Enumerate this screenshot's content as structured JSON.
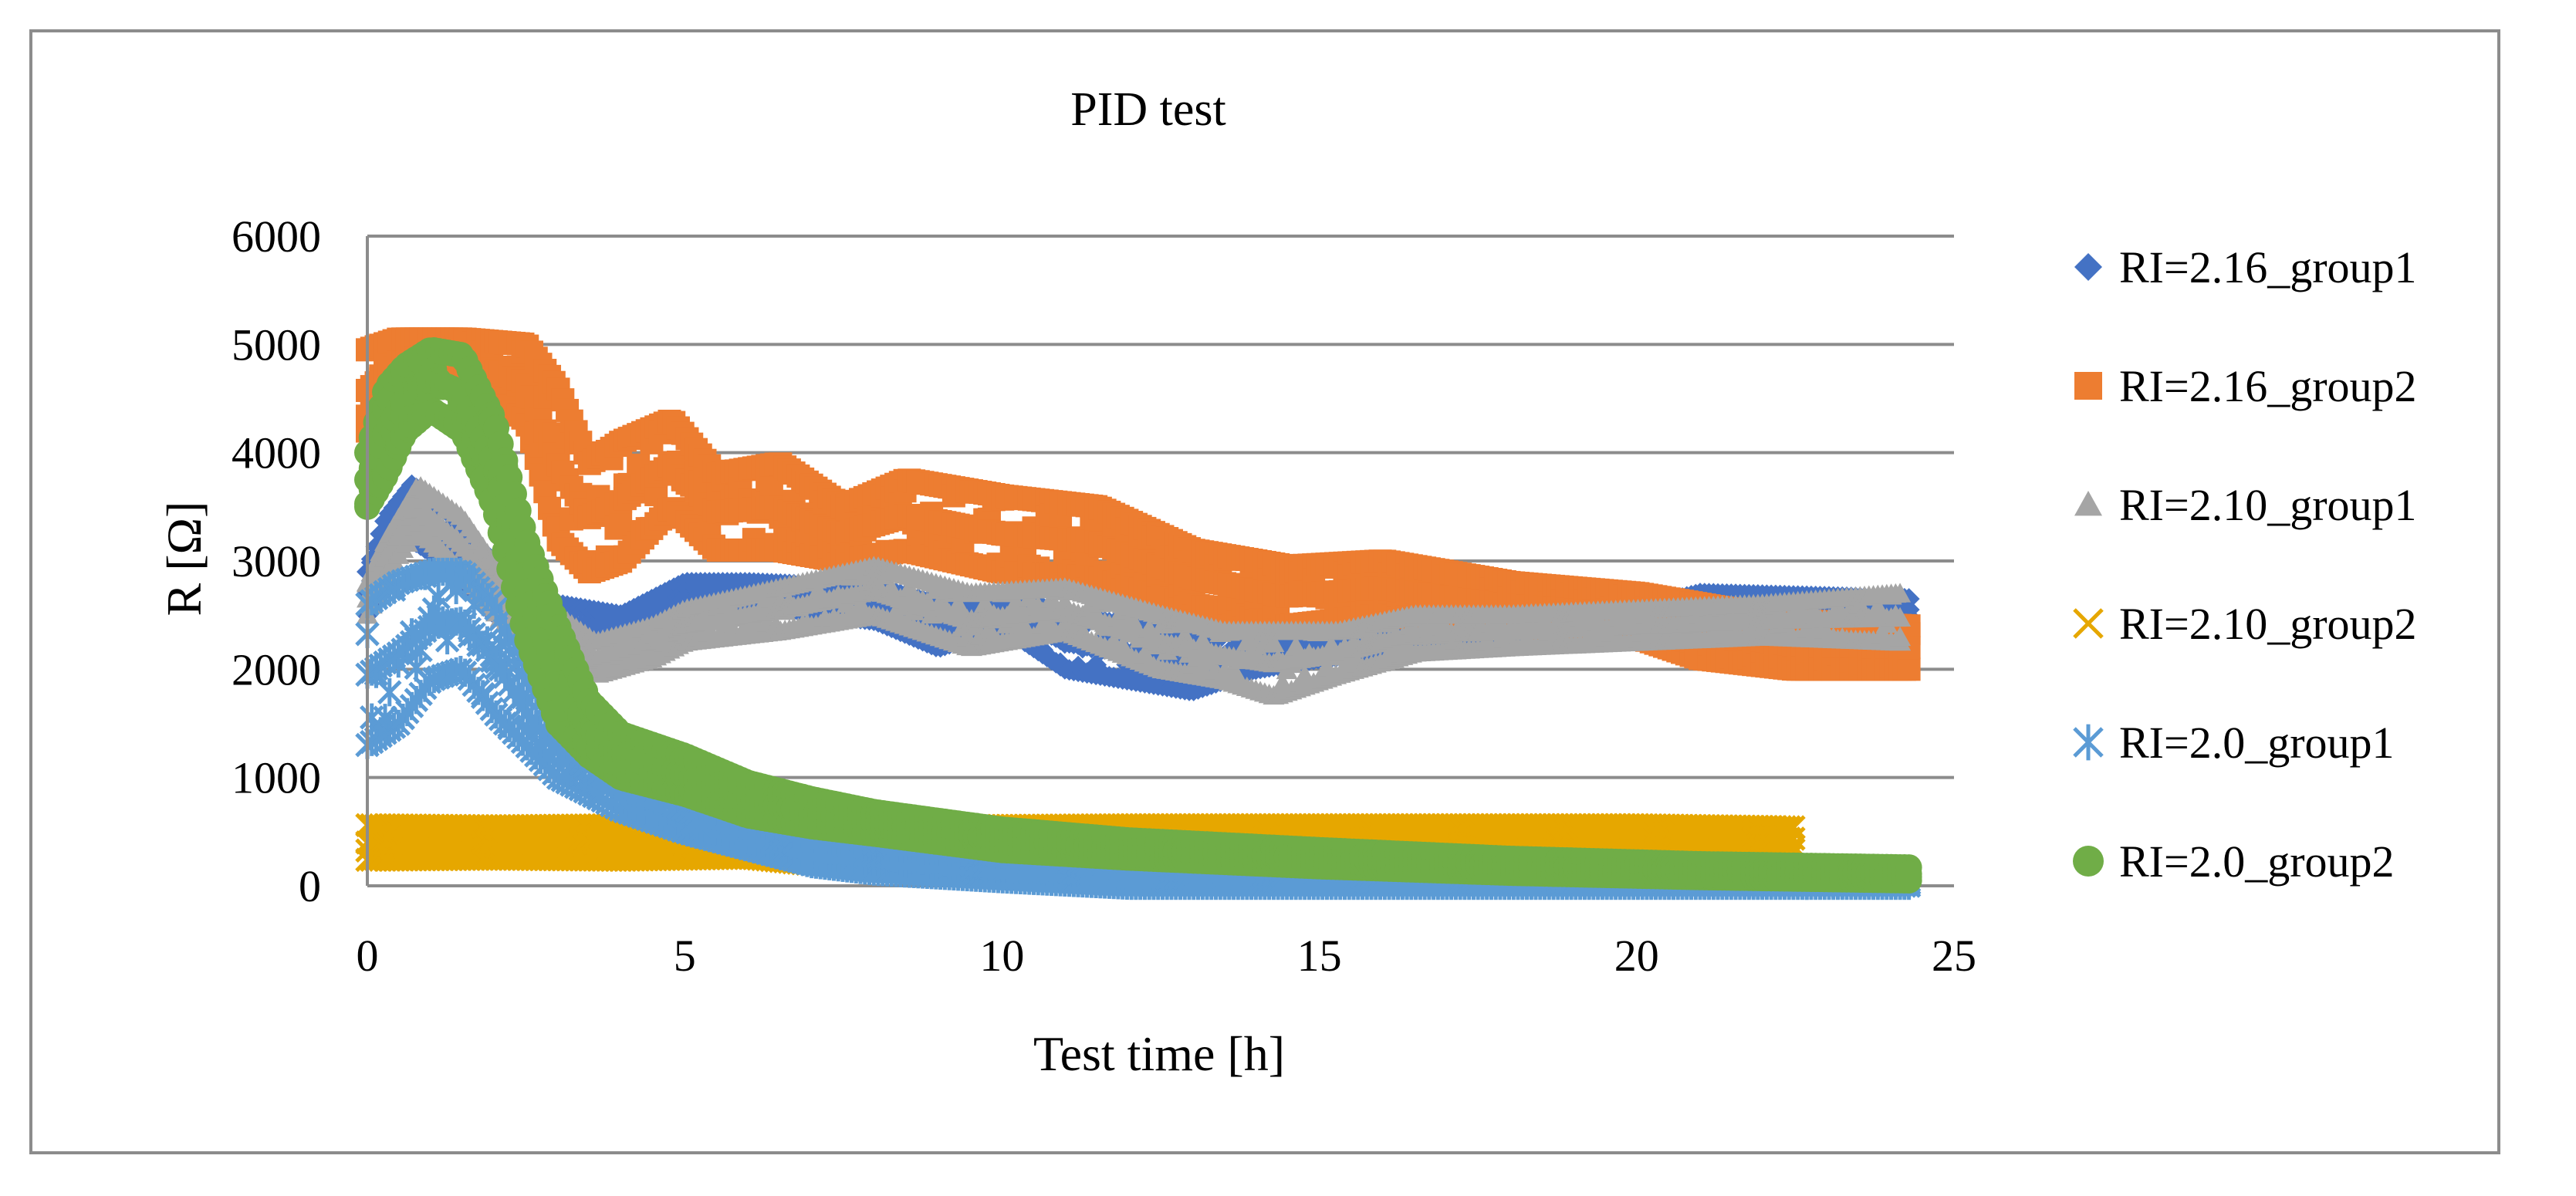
{
  "chart_data": {
    "type": "scatter",
    "title": "PID test",
    "xlabel": "Test time [h]",
    "ylabel": "R [Ω]",
    "xlim": [
      0,
      25
    ],
    "ylim": [
      0,
      6000
    ],
    "xticks": [
      0,
      5,
      10,
      15,
      20,
      25
    ],
    "yticks": [
      0,
      1000,
      2000,
      3000,
      4000,
      5000,
      6000
    ],
    "xtick_labels": [
      "0",
      "5",
      "10",
      "15",
      "20",
      "25"
    ],
    "ytick_labels": [
      "0",
      "1000",
      "2000",
      "3000",
      "4000",
      "5000",
      "6000"
    ],
    "grid": "horizontal",
    "legend_position": "right",
    "series": [
      {
        "name": "RI=2.16_group1",
        "marker": "diamond",
        "color": "#4472C4",
        "band": [
          [
            0.0,
            2500,
            2900
          ],
          [
            0.3,
            3000,
            3400
          ],
          [
            0.7,
            3200,
            3700
          ],
          [
            1.2,
            3000,
            3500
          ],
          [
            1.8,
            2600,
            3100
          ],
          [
            2.5,
            2300,
            2700
          ],
          [
            3.0,
            2200,
            2600
          ],
          [
            4.0,
            2300,
            2500
          ],
          [
            5.0,
            2500,
            2800
          ],
          [
            6.0,
            2600,
            2800
          ],
          [
            8.0,
            2450,
            2750
          ],
          [
            9.0,
            2200,
            2600
          ],
          [
            10.0,
            2400,
            2700
          ],
          [
            11.0,
            2000,
            2500
          ],
          [
            12.0,
            1900,
            2400
          ],
          [
            13.0,
            1800,
            2300
          ],
          [
            14.0,
            2000,
            2400
          ],
          [
            15.0,
            2100,
            2400
          ],
          [
            17.0,
            2200,
            2400
          ],
          [
            20.0,
            2350,
            2550
          ],
          [
            21.0,
            2500,
            2700
          ],
          [
            24.3,
            2450,
            2650
          ]
        ]
      },
      {
        "name": "RI=2.16_group2",
        "marker": "square",
        "color": "#ED7D31",
        "band": [
          [
            0.0,
            4200,
            4950
          ],
          [
            0.5,
            4600,
            5050
          ],
          [
            1.5,
            4700,
            5050
          ],
          [
            2.5,
            4300,
            5000
          ],
          [
            3.0,
            3200,
            4600
          ],
          [
            3.5,
            2900,
            3900
          ],
          [
            4.0,
            3000,
            4100
          ],
          [
            4.8,
            3500,
            4300
          ],
          [
            5.5,
            3100,
            3800
          ],
          [
            6.5,
            3100,
            3900
          ],
          [
            7.5,
            3000,
            3500
          ],
          [
            8.5,
            3100,
            3750
          ],
          [
            10.0,
            2900,
            3600
          ],
          [
            11.5,
            2850,
            3500
          ],
          [
            13.0,
            2600,
            3100
          ],
          [
            14.5,
            2400,
            2950
          ],
          [
            16.0,
            2500,
            3000
          ],
          [
            18.0,
            2400,
            2800
          ],
          [
            20.0,
            2300,
            2700
          ],
          [
            21.0,
            2100,
            2600
          ],
          [
            22.5,
            2000,
            2450
          ],
          [
            24.3,
            2000,
            2400
          ]
        ]
      },
      {
        "name": "RI=2.10_group1",
        "marker": "triangle",
        "color": "#A5A5A5",
        "band": [
          [
            0.0,
            2500,
            2800
          ],
          [
            0.3,
            2900,
            3200
          ],
          [
            0.8,
            3300,
            3700
          ],
          [
            1.5,
            2900,
            3400
          ],
          [
            2.2,
            2400,
            2800
          ],
          [
            3.0,
            2100,
            2500
          ],
          [
            3.6,
            1950,
            2250
          ],
          [
            4.5,
            2100,
            2400
          ],
          [
            5.0,
            2250,
            2550
          ],
          [
            6.5,
            2350,
            2750
          ],
          [
            8.0,
            2500,
            2950
          ],
          [
            9.5,
            2200,
            2700
          ],
          [
            11.0,
            2350,
            2750
          ],
          [
            12.5,
            2000,
            2500
          ],
          [
            13.5,
            1900,
            2350
          ],
          [
            14.3,
            1750,
            2350
          ],
          [
            15.3,
            1950,
            2350
          ],
          [
            16.5,
            2150,
            2500
          ],
          [
            18.0,
            2200,
            2500
          ],
          [
            20.0,
            2250,
            2550
          ],
          [
            22.0,
            2300,
            2600
          ],
          [
            24.2,
            2250,
            2700
          ]
        ]
      },
      {
        "name": "RI=2.10_group2",
        "marker": "x",
        "color": "#E6A700",
        "band": [
          [
            0.0,
            240,
            560
          ],
          [
            2.0,
            250,
            550
          ],
          [
            4.0,
            240,
            560
          ],
          [
            6.0,
            260,
            540
          ],
          [
            7.0,
            200,
            500
          ],
          [
            9.0,
            300,
            550
          ],
          [
            12.0,
            320,
            560
          ],
          [
            16.0,
            320,
            560
          ],
          [
            20.0,
            330,
            560
          ],
          [
            22.5,
            330,
            540
          ]
        ]
      },
      {
        "name": "RI=2.0_group1",
        "marker": "asterisk",
        "color": "#5B9BD5",
        "band": [
          [
            0.0,
            1300,
            2600
          ],
          [
            0.5,
            1500,
            2800
          ],
          [
            1.0,
            1900,
            2900
          ],
          [
            1.5,
            2000,
            2900
          ],
          [
            2.0,
            1600,
            2600
          ],
          [
            2.5,
            1300,
            1900
          ],
          [
            3.0,
            1000,
            1500
          ],
          [
            4.0,
            700,
            1150
          ],
          [
            5.0,
            500,
            900
          ],
          [
            6.0,
            350,
            700
          ],
          [
            7.0,
            200,
            500
          ],
          [
            8.0,
            130,
            420
          ],
          [
            10.0,
            60,
            280
          ],
          [
            12.0,
            0,
            160
          ],
          [
            15.0,
            0,
            80
          ],
          [
            20.0,
            0,
            60
          ],
          [
            24.3,
            0,
            50
          ]
        ]
      },
      {
        "name": "RI=2.0_group2",
        "marker": "circle",
        "color": "#70AD47",
        "band": [
          [
            0.0,
            3500,
            4000
          ],
          [
            0.3,
            3800,
            4600
          ],
          [
            0.6,
            4200,
            4800
          ],
          [
            1.0,
            4400,
            4950
          ],
          [
            1.5,
            4200,
            4900
          ],
          [
            2.0,
            3500,
            4300
          ],
          [
            2.5,
            2300,
            3200
          ],
          [
            3.0,
            1500,
            2400
          ],
          [
            3.5,
            1200,
            1700
          ],
          [
            4.0,
            1000,
            1400
          ],
          [
            5.0,
            850,
            1200
          ],
          [
            6.0,
            650,
            950
          ],
          [
            7.0,
            550,
            800
          ],
          [
            8.0,
            480,
            680
          ],
          [
            10.0,
            330,
            520
          ],
          [
            12.0,
            260,
            420
          ],
          [
            15.0,
            180,
            330
          ],
          [
            18.0,
            120,
            250
          ],
          [
            21.0,
            80,
            200
          ],
          [
            24.3,
            50,
            170
          ]
        ]
      }
    ]
  }
}
